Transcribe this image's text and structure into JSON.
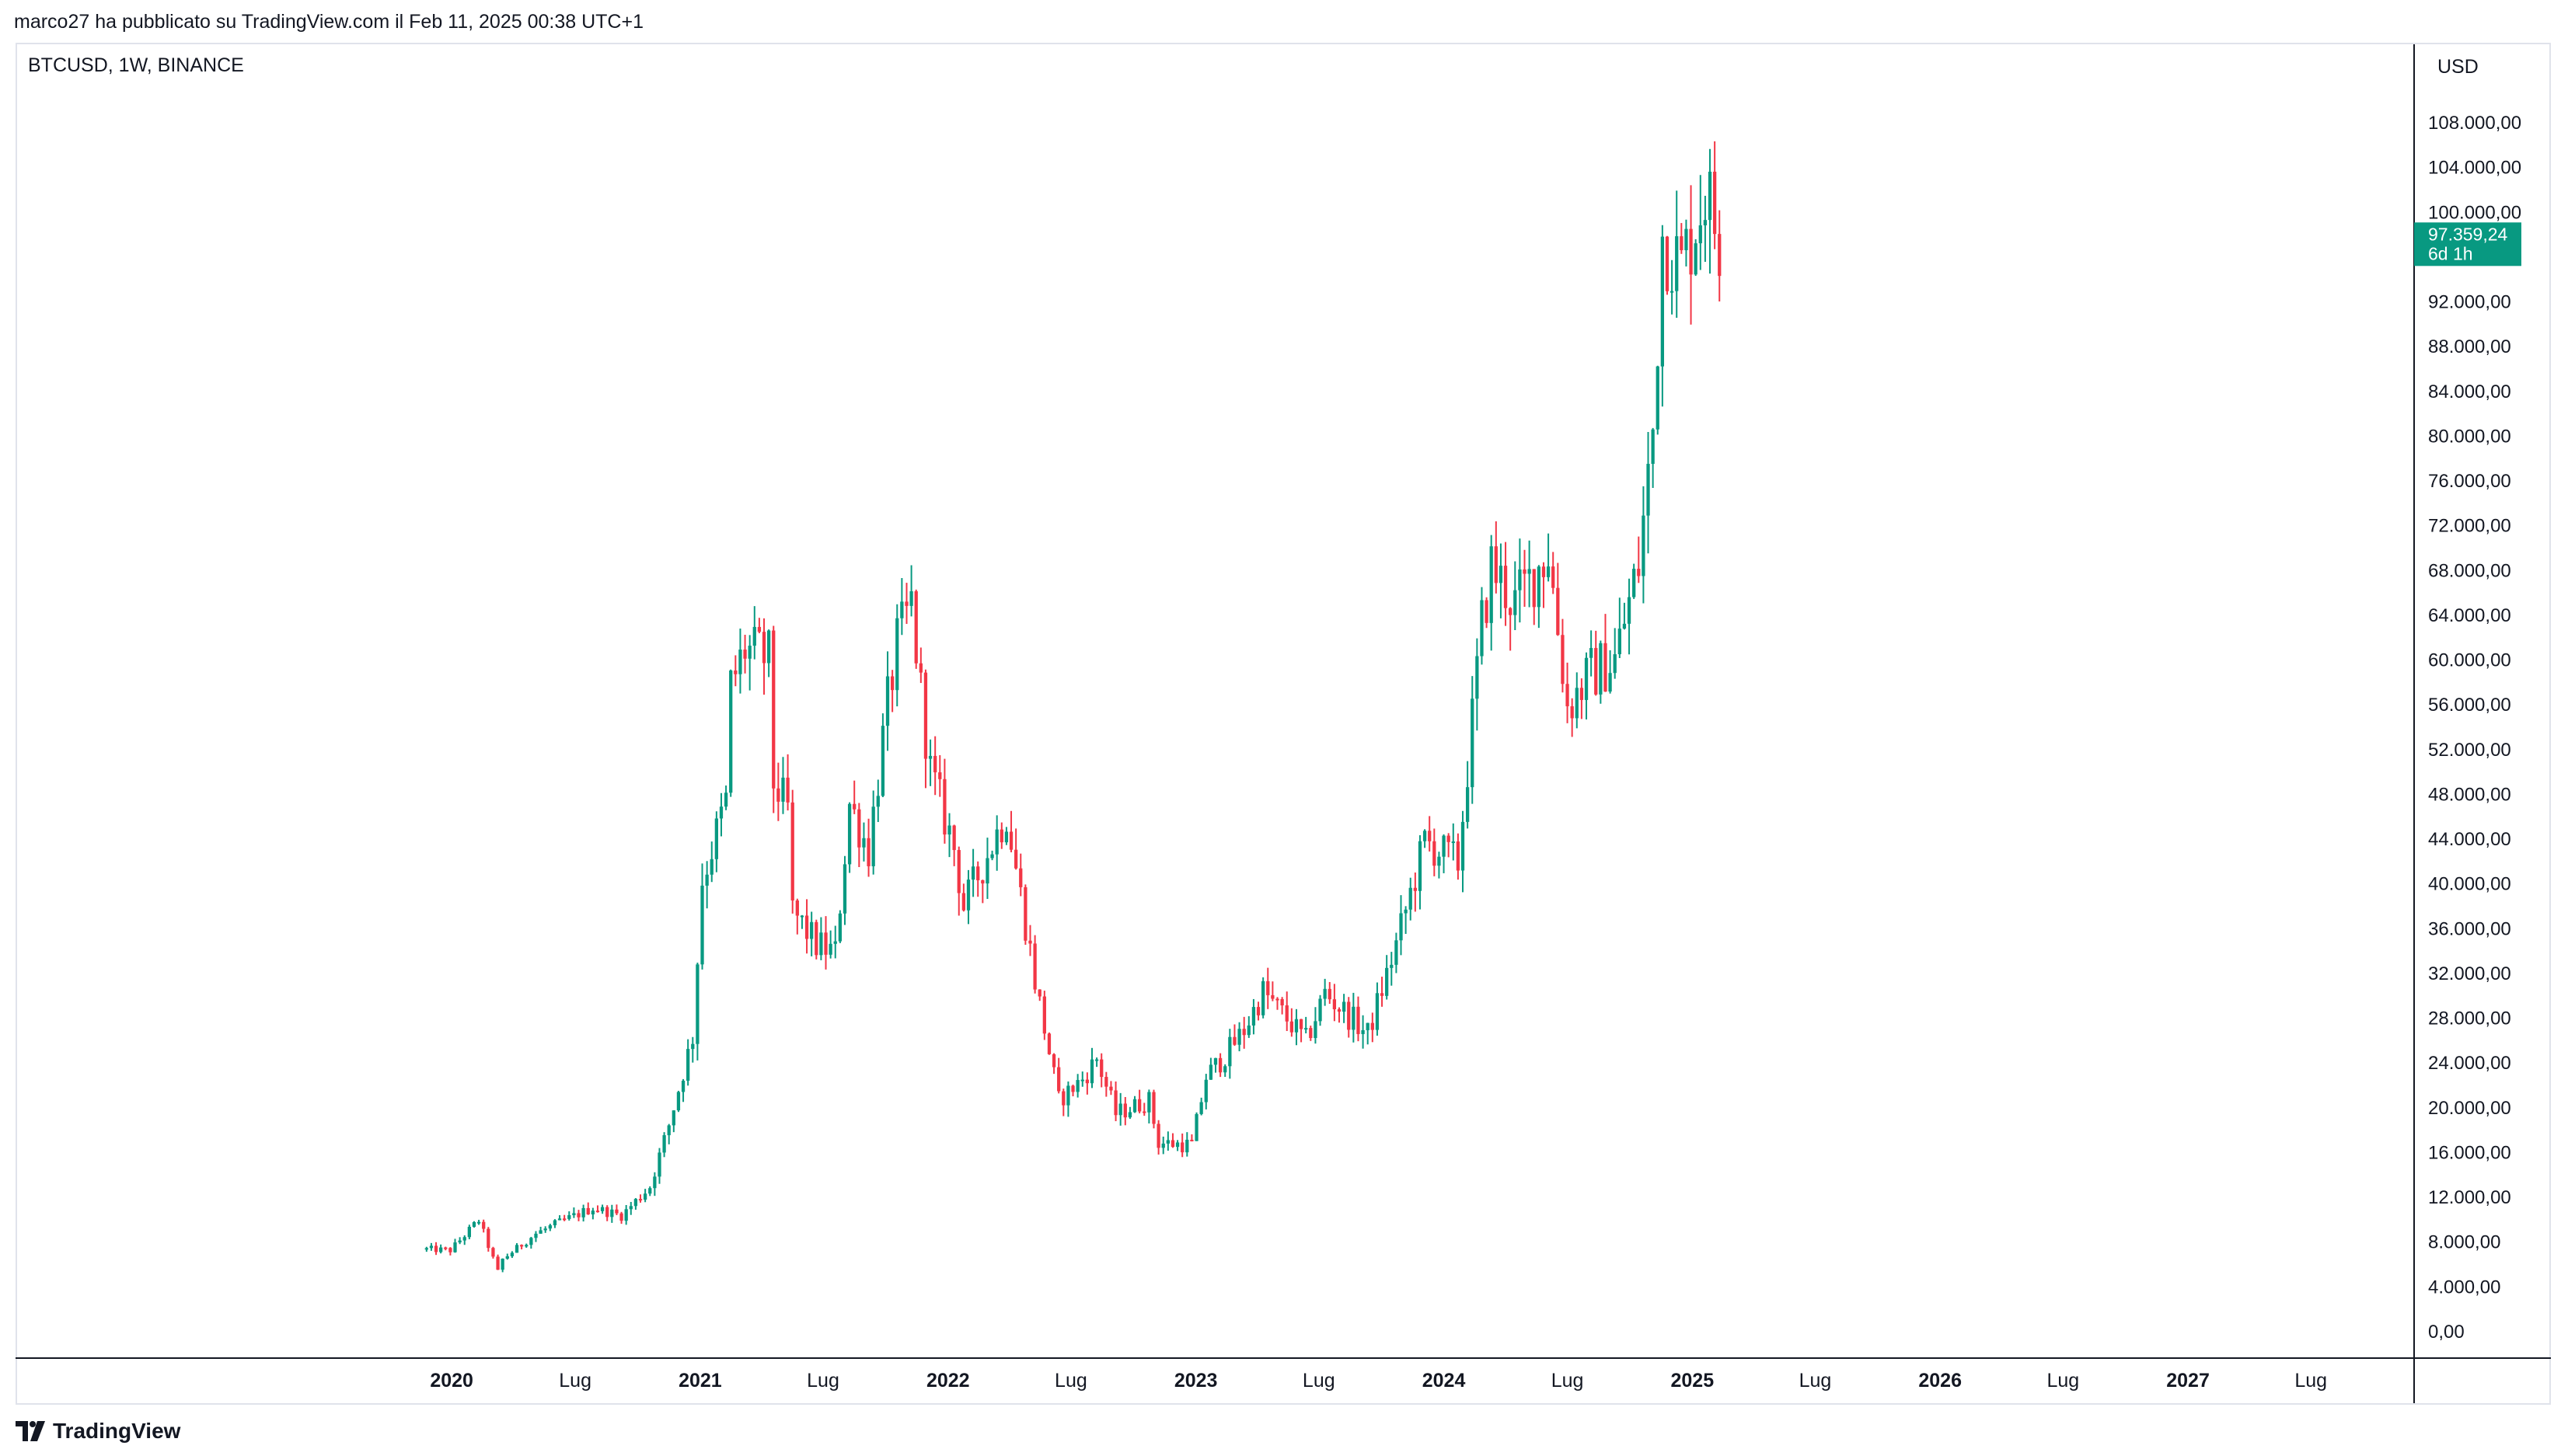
{
  "header": {
    "published_text": "marco27 ha pubblicato su TradingView.com il Feb 11, 2025 00:38 UTC+1"
  },
  "symbol": {
    "label": "BTCUSD, 1W, BINANCE"
  },
  "price_axis": {
    "currency": "USD"
  },
  "last_price": {
    "value": "97.359,24",
    "countdown": "6d 1h",
    "color": "#089981"
  },
  "footer": {
    "brand": "TradingView",
    "logo_icon": "tradingview-logo-icon"
  },
  "colors": {
    "up": "#089981",
    "down": "#f23645",
    "axis_text": "#131722",
    "grid": "#e0e3eb"
  },
  "chart_data": {
    "type": "candlestick",
    "interval": "1W",
    "ylim": [
      0,
      112000
    ],
    "y_ticks": [
      {
        "value": 0,
        "label": "0,00"
      },
      {
        "value": 4000,
        "label": "4.000,00"
      },
      {
        "value": 8000,
        "label": "8.000,00"
      },
      {
        "value": 12000,
        "label": "12.000,00"
      },
      {
        "value": 16000,
        "label": "16.000,00"
      },
      {
        "value": 20000,
        "label": "20.000,00"
      },
      {
        "value": 24000,
        "label": "24.000,00"
      },
      {
        "value": 28000,
        "label": "28.000,00"
      },
      {
        "value": 32000,
        "label": "32.000,00"
      },
      {
        "value": 36000,
        "label": "36.000,00"
      },
      {
        "value": 40000,
        "label": "40.000,00"
      },
      {
        "value": 44000,
        "label": "44.000,00"
      },
      {
        "value": 48000,
        "label": "48.000,00"
      },
      {
        "value": 52000,
        "label": "52.000,00"
      },
      {
        "value": 56000,
        "label": "56.000,00"
      },
      {
        "value": 60000,
        "label": "60.000,00"
      },
      {
        "value": 64000,
        "label": "64.000,00"
      },
      {
        "value": 68000,
        "label": "68.000,00"
      },
      {
        "value": 72000,
        "label": "72.000,00"
      },
      {
        "value": 76000,
        "label": "76.000,00"
      },
      {
        "value": 80000,
        "label": "80.000,00"
      },
      {
        "value": 84000,
        "label": "84.000,00"
      },
      {
        "value": 88000,
        "label": "88.000,00"
      },
      {
        "value": 92000,
        "label": "92.000,00"
      },
      {
        "value": 100000,
        "label": "100.000,00"
      },
      {
        "value": 104000,
        "label": "104.000,00"
      },
      {
        "value": 108000,
        "label": "108.000,00"
      }
    ],
    "x_ticks": [
      {
        "date": "2020-01-01",
        "label": "2020",
        "bold": true
      },
      {
        "date": "2020-07-01",
        "label": "Lug",
        "bold": false
      },
      {
        "date": "2021-01-01",
        "label": "2021",
        "bold": true
      },
      {
        "date": "2021-07-01",
        "label": "Lug",
        "bold": false
      },
      {
        "date": "2022-01-01",
        "label": "2022",
        "bold": true
      },
      {
        "date": "2022-07-01",
        "label": "Lug",
        "bold": false
      },
      {
        "date": "2023-01-01",
        "label": "2023",
        "bold": true
      },
      {
        "date": "2023-07-01",
        "label": "Lug",
        "bold": false
      },
      {
        "date": "2024-01-01",
        "label": "2024",
        "bold": true
      },
      {
        "date": "2024-07-01",
        "label": "Lug",
        "bold": false
      },
      {
        "date": "2025-01-01",
        "label": "2025",
        "bold": true
      },
      {
        "date": "2025-07-01",
        "label": "Lug",
        "bold": false
      },
      {
        "date": "2026-01-01",
        "label": "2026",
        "bold": true
      },
      {
        "date": "2026-07-01",
        "label": "Lug",
        "bold": false
      },
      {
        "date": "2027-01-01",
        "label": "2027",
        "bold": true
      },
      {
        "date": "2027-07-01",
        "label": "Lug",
        "bold": false
      }
    ],
    "xlim": [
      "2018-04-01",
      "2027-11-30"
    ],
    "close_points": [
      [
        "2019-11-25",
        7300
      ],
      [
        "2019-12-30",
        7200
      ],
      [
        "2020-02-10",
        9900
      ],
      [
        "2020-03-09",
        5300
      ],
      [
        "2020-03-16",
        6400
      ],
      [
        "2020-05-04",
        8700
      ],
      [
        "2020-06-01",
        9500
      ],
      [
        "2020-07-27",
        11000
      ],
      [
        "2020-09-07",
        10300
      ],
      [
        "2020-10-19",
        12900
      ],
      [
        "2020-11-16",
        18400
      ],
      [
        "2020-12-21",
        26300
      ],
      [
        "2021-01-04",
        40300
      ],
      [
        "2021-02-08",
        47300
      ],
      [
        "2021-02-15",
        57600
      ],
      [
        "2021-03-08",
        60900
      ],
      [
        "2021-04-12",
        60000
      ],
      [
        "2021-04-19",
        49000
      ],
      [
        "2021-05-10",
        46500
      ],
      [
        "2021-05-17",
        37500
      ],
      [
        "2021-06-21",
        34500
      ],
      [
        "2021-07-19",
        33800
      ],
      [
        "2021-08-09",
        47100
      ],
      [
        "2021-09-06",
        43000
      ],
      [
        "2021-10-04",
        56000
      ],
      [
        "2021-10-18",
        61300
      ],
      [
        "2021-11-08",
        64900
      ],
      [
        "2021-11-22",
        57000
      ],
      [
        "2021-12-06",
        50000
      ],
      [
        "2022-01-10",
        43100
      ],
      [
        "2022-01-24",
        37900
      ],
      [
        "2022-03-28",
        46300
      ],
      [
        "2022-05-02",
        34000
      ],
      [
        "2022-05-09",
        31300
      ],
      [
        "2022-06-13",
        20600
      ],
      [
        "2022-07-18",
        22500
      ],
      [
        "2022-08-08",
        24300
      ],
      [
        "2022-09-05",
        19400
      ],
      [
        "2022-10-24",
        20600
      ],
      [
        "2022-11-07",
        16800
      ],
      [
        "2022-12-26",
        16600
      ],
      [
        "2023-01-16",
        22700
      ],
      [
        "2023-02-13",
        24600
      ],
      [
        "2023-03-13",
        26900
      ],
      [
        "2023-04-10",
        30300
      ],
      [
        "2023-06-12",
        25900
      ],
      [
        "2023-07-10",
        30200
      ],
      [
        "2023-09-11",
        26500
      ],
      [
        "2023-10-23",
        34500
      ],
      [
        "2023-12-04",
        43700
      ],
      [
        "2024-01-22",
        41800
      ],
      [
        "2024-02-26",
        63100
      ],
      [
        "2024-03-11",
        68300
      ],
      [
        "2024-04-15",
        64900
      ],
      [
        "2024-06-03",
        69700
      ],
      [
        "2024-07-01",
        55800
      ],
      [
        "2024-08-05",
        58700
      ],
      [
        "2024-09-09",
        60000
      ],
      [
        "2024-10-14",
        68400
      ],
      [
        "2024-11-04",
        80400
      ],
      [
        "2024-11-18",
        98000
      ],
      [
        "2024-12-16",
        95000
      ],
      [
        "2025-01-20",
        102000
      ],
      [
        "2025-02-10",
        97359
      ]
    ]
  }
}
